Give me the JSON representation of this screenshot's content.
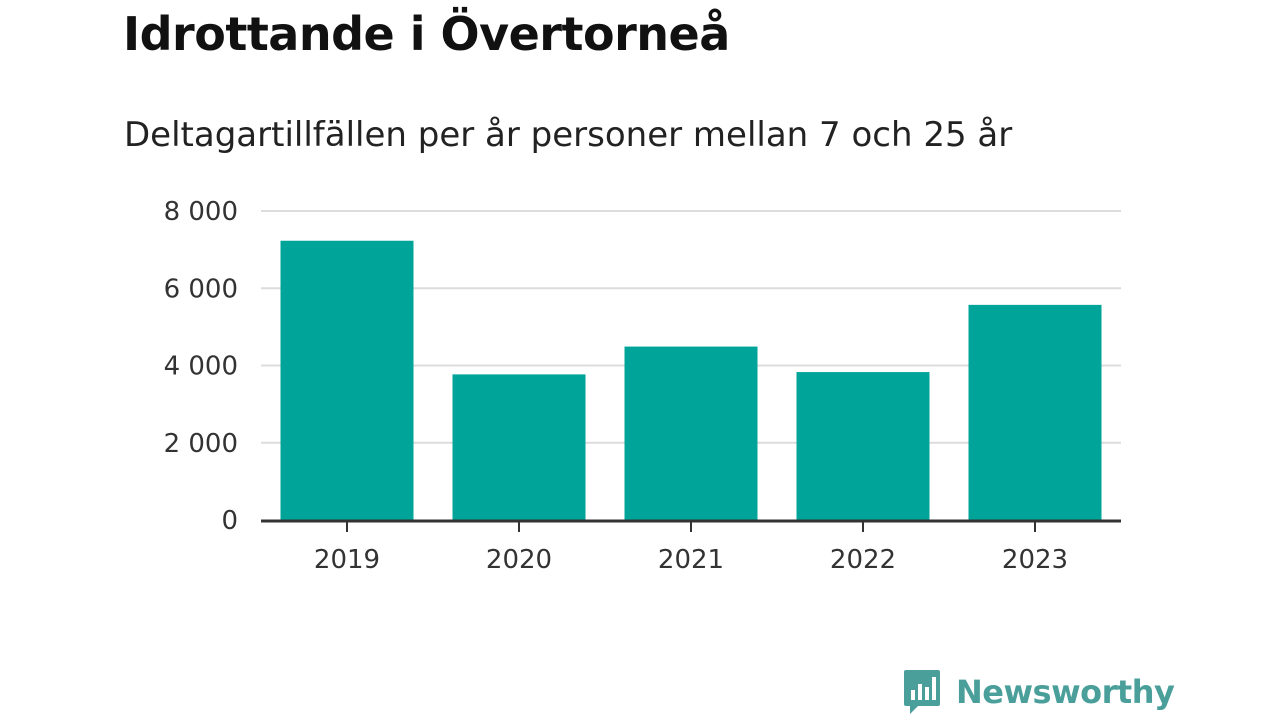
{
  "chart_data": {
    "type": "bar",
    "title": "Idrottande i Övertorneå",
    "subtitle": "Deltagartillfällen per år personer mellan 7 och 25 år",
    "categories": [
      "2019",
      "2020",
      "2021",
      "2022",
      "2023"
    ],
    "values": [
      7230,
      3770,
      4490,
      3830,
      5570
    ],
    "ylim": [
      0,
      8000
    ],
    "yticks": [
      0,
      2000,
      4000,
      6000,
      8000
    ],
    "ytick_labels": [
      "0",
      "2 000",
      "4 000",
      "6 000",
      "8 000"
    ],
    "xlabel": "",
    "ylabel": "",
    "grid": true,
    "bar_color": "#00a499"
  },
  "brand": {
    "name": "Newsworthy",
    "icon": "newsworthy-logo-icon",
    "color": "#4a9f9a"
  }
}
